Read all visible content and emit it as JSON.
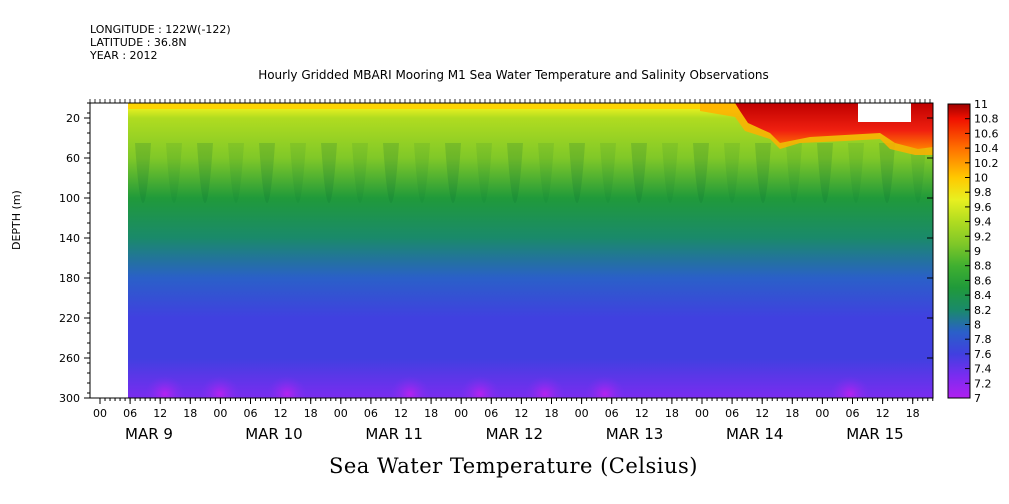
{
  "header": {
    "longitude": "LONGITUDE : 122W(-122)",
    "latitude": "LATITUDE : 36.8N",
    "year": "YEAR : 2012"
  },
  "chart_data": {
    "type": "heatmap",
    "title": "Hourly Gridded MBARI Mooring M1 Sea Water Temperature and Salinity Observations",
    "xlabel": "",
    "ylabel": "DEPTH (m)",
    "colorbar_label": "Sea Water Temperature (Celsius)",
    "y_ticks": [
      20,
      60,
      100,
      140,
      180,
      220,
      260,
      300
    ],
    "y_range": [
      5,
      300
    ],
    "hour_ticks": [
      "00",
      "06",
      "12",
      "18",
      "00",
      "06",
      "12",
      "18",
      "00",
      "06",
      "12",
      "18",
      "00",
      "06",
      "12",
      "18",
      "00",
      "06",
      "12",
      "18",
      "00",
      "06",
      "12",
      "18",
      "00",
      "06",
      "12",
      "18"
    ],
    "day_labels": [
      "MAR  9",
      "MAR 10",
      "MAR 11",
      "MAR 12",
      "MAR 13",
      "MAR 14",
      "MAR 15"
    ],
    "colorbar_ticks": [
      "11",
      "10.8",
      "10.6",
      "10.4",
      "10.2",
      "10",
      "9.8",
      "9.6",
      "9.4",
      "9.2",
      "9",
      "8.8",
      "8.6",
      "8.4",
      "8.2",
      "8",
      "7.8",
      "7.6",
      "7.4",
      "7.2",
      "7"
    ],
    "value_range": [
      7,
      11
    ],
    "data_start": "MAR 9 06",
    "depth_profile": [
      {
        "depth": 10,
        "temp": 9.8
      },
      {
        "depth": 20,
        "temp": 9.5
      },
      {
        "depth": 60,
        "temp": 9.0
      },
      {
        "depth": 100,
        "temp": 8.6
      },
      {
        "depth": 140,
        "temp": 8.1
      },
      {
        "depth": 180,
        "temp": 7.8
      },
      {
        "depth": 220,
        "temp": 7.6
      },
      {
        "depth": 260,
        "temp": 7.5
      },
      {
        "depth": 300,
        "temp": 7.3
      }
    ],
    "warm_surface_layer": [
      {
        "time": "MAR 14 06",
        "depth": 25,
        "temp": 10.8
      },
      {
        "time": "MAR 15 00",
        "depth": 30,
        "temp": 10.9
      },
      {
        "time": "MAR 15 18",
        "depth": 50,
        "temp": 10.8
      }
    ]
  }
}
